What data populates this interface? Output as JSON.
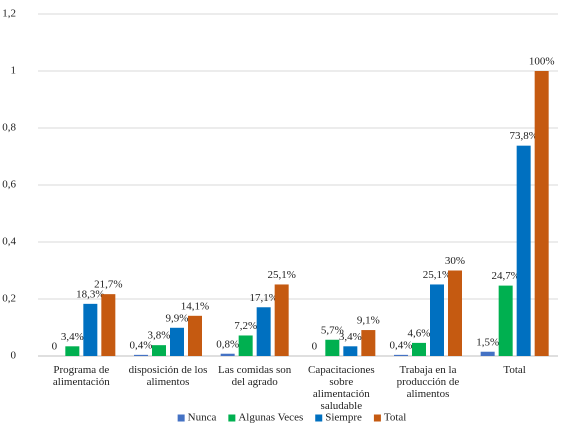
{
  "chart_data": {
    "type": "bar",
    "categories": [
      "Programa de alimentación",
      "disposición de los alimentos",
      "Las comidas son del agrado",
      "Capacitaciones sobre alimentación saludable",
      "Trabaja en la producción de alimentos",
      "Total"
    ],
    "series": [
      {
        "name": "Nunca",
        "color": "#4472c4",
        "values": [
          0,
          0.004,
          0.008,
          0,
          0.004,
          0.015
        ],
        "value_labels": [
          "0",
          "0,4%",
          "0,8%",
          "0",
          "0,4%",
          "1,5%"
        ]
      },
      {
        "name": "Algunas Veces",
        "color": "#00b050",
        "values": [
          0.034,
          0.038,
          0.072,
          0.057,
          0.046,
          0.247
        ],
        "value_labels": [
          "3,4%",
          "3,8%",
          "7,2%",
          "5,7%",
          "4,6%",
          "24,7%"
        ]
      },
      {
        "name": "Siempre",
        "color": "#0070c0",
        "values": [
          0.183,
          0.099,
          0.171,
          0.034,
          0.251,
          0.738
        ],
        "value_labels": [
          "18,3%",
          "9,9%",
          "17,1%",
          "3,4%",
          "25,1%",
          "73,8%"
        ]
      },
      {
        "name": "Total",
        "color": "#c55a11",
        "values": [
          0.217,
          0.141,
          0.251,
          0.091,
          0.3,
          1
        ],
        "value_labels": [
          "21,7%",
          "14,1%",
          "25,1%",
          "9,1%",
          "30%",
          "100%"
        ]
      }
    ],
    "ylim": [
      0,
      1.2
    ],
    "yticks": [
      0,
      {
        "value": 0.2,
        "label": "0,2"
      },
      {
        "value": 0.4,
        "label": "0,4"
      },
      {
        "value": 0.6,
        "label": "0,6"
      },
      {
        "value": 0.8,
        "label": "0,8"
      },
      1,
      {
        "value": 1.2,
        "label": "1,2"
      }
    ],
    "grid": true,
    "legend": "bottom"
  }
}
